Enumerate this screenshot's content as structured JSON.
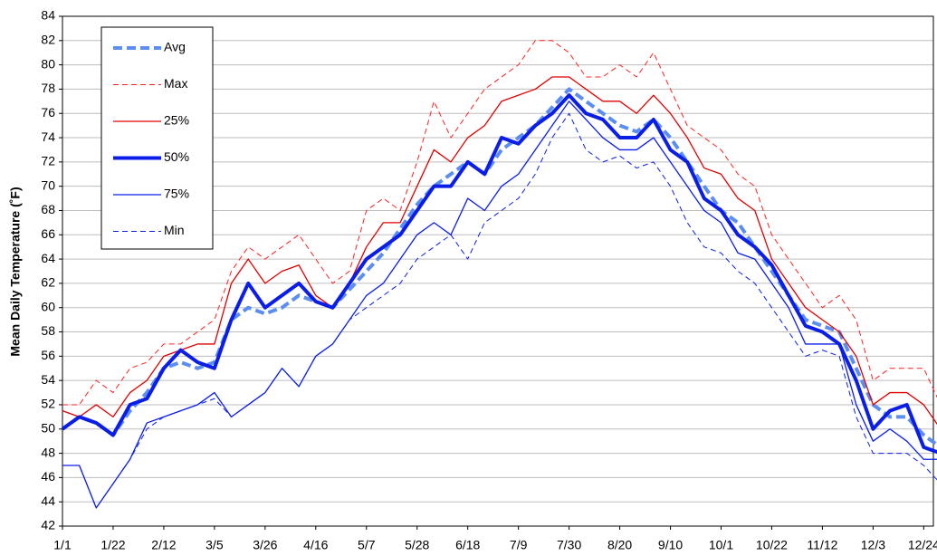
{
  "chart_data": {
    "type": "line",
    "y_label": "Mean Daily Temperature (˚F)",
    "x": [
      0,
      7,
      14,
      21,
      28,
      35,
      42,
      49,
      56,
      63,
      70,
      77,
      84,
      91,
      98,
      105,
      112,
      119,
      126,
      133,
      140,
      147,
      154,
      161,
      168,
      175,
      182,
      189,
      196,
      203,
      210,
      217,
      224,
      231,
      238,
      245,
      252,
      259,
      266,
      273,
      280,
      287,
      294,
      301,
      308,
      315,
      322,
      329,
      336,
      343,
      350,
      357,
      364
    ],
    "xlim": [
      0,
      361
    ],
    "xticks": [
      {
        "value": 0,
        "label": "1/1"
      },
      {
        "value": 21,
        "label": "1/22"
      },
      {
        "value": 42,
        "label": "2/12"
      },
      {
        "value": 63,
        "label": "3/5"
      },
      {
        "value": 84,
        "label": "3/26"
      },
      {
        "value": 105,
        "label": "4/16"
      },
      {
        "value": 126,
        "label": "5/7"
      },
      {
        "value": 147,
        "label": "5/28"
      },
      {
        "value": 168,
        "label": "6/18"
      },
      {
        "value": 189,
        "label": "7/9"
      },
      {
        "value": 210,
        "label": "7/30"
      },
      {
        "value": 231,
        "label": "8/20"
      },
      {
        "value": 252,
        "label": "9/10"
      },
      {
        "value": 273,
        "label": "10/1"
      },
      {
        "value": 294,
        "label": "10/22"
      },
      {
        "value": 315,
        "label": "11/12"
      },
      {
        "value": 336,
        "label": "12/3"
      },
      {
        "value": 357,
        "label": "12/24"
      }
    ],
    "ylim": [
      42,
      84
    ],
    "yticks": [
      42,
      44,
      46,
      48,
      50,
      52,
      54,
      56,
      58,
      60,
      62,
      64,
      66,
      68,
      70,
      72,
      74,
      76,
      78,
      80,
      82,
      84
    ],
    "grid": true,
    "legend": "top-left",
    "series": [
      {
        "name": "Avg",
        "color": "#5b8ef0",
        "style": "dashed",
        "line_width": 4,
        "values": [
          50,
          51,
          50.5,
          49.5,
          51.5,
          53,
          55,
          55.5,
          55,
          55.5,
          59,
          60,
          59.5,
          60,
          61,
          60.5,
          60,
          61.5,
          63,
          64.5,
          66.5,
          68.5,
          70,
          71,
          72,
          71,
          73,
          74,
          75,
          76.5,
          78,
          77,
          76,
          75,
          74.5,
          75.5,
          74,
          72,
          70,
          68,
          67,
          65,
          63,
          61,
          59,
          58.5,
          58,
          55,
          52,
          51,
          51,
          49.5,
          48.5
        ]
      },
      {
        "name": "Max",
        "color": "#ff2020",
        "style": "dashed",
        "line_width": 1,
        "values": [
          52,
          52,
          54,
          53,
          55,
          55.5,
          57,
          57,
          58,
          59,
          63,
          65,
          64,
          65,
          66,
          64,
          62,
          63,
          68,
          69,
          68,
          72,
          77,
          74,
          76,
          78,
          79,
          80,
          82,
          82,
          81,
          79,
          79,
          80,
          79,
          81,
          78,
          75,
          74,
          73,
          71,
          70,
          66,
          64,
          62,
          60,
          61,
          59,
          54,
          55,
          55,
          55,
          52
        ]
      },
      {
        "name": "25%",
        "color": "#e00000",
        "style": "solid",
        "line_width": 1.3,
        "values": [
          51.5,
          51,
          52,
          51,
          53,
          54,
          56,
          56.5,
          57,
          57,
          62,
          64,
          62,
          63,
          63.5,
          61,
          60,
          62,
          65,
          67,
          67,
          70,
          73,
          72,
          74,
          75,
          77,
          77.5,
          78,
          79,
          79,
          78,
          77,
          77,
          76,
          77.5,
          76,
          74,
          71.5,
          71,
          69,
          68,
          64,
          62,
          60,
          59,
          58,
          56,
          52,
          53,
          53,
          52,
          50
        ]
      },
      {
        "name": "50%",
        "color": "#0a1ee8",
        "style": "solid",
        "line_width": 4,
        "values": [
          50,
          51,
          50.5,
          49.5,
          52,
          52.5,
          55,
          56.5,
          55.5,
          55,
          59,
          62,
          60,
          61,
          62,
          60.5,
          60,
          62,
          64,
          65,
          66,
          68,
          70,
          70,
          72,
          71,
          74,
          73.5,
          75,
          76,
          77.5,
          76,
          75.5,
          74,
          74,
          75.5,
          73,
          72,
          69,
          68,
          66,
          65,
          63.5,
          61,
          58.5,
          58,
          57,
          54,
          50,
          51.5,
          52,
          48.5,
          48
        ]
      },
      {
        "name": "75%",
        "color": "#0a1ee8",
        "style": "solid",
        "line_width": 1.3,
        "values": [
          47,
          47,
          43.5,
          45.5,
          47.5,
          50.5,
          51,
          51.5,
          52,
          53,
          51,
          52,
          53,
          55,
          53.5,
          56,
          57,
          59,
          61,
          62,
          64,
          66,
          67,
          66,
          69,
          68,
          70,
          71,
          73,
          75,
          77,
          75.5,
          74,
          73,
          73,
          74,
          72,
          70,
          68,
          67,
          64.5,
          64,
          62,
          60,
          57,
          57,
          57,
          52,
          49,
          50,
          49,
          47.5,
          47.5
        ]
      },
      {
        "name": "Min",
        "color": "#0a1ee8",
        "style": "dashed",
        "line_width": 1,
        "values": [
          47,
          47,
          43.5,
          45.5,
          47.5,
          50,
          51,
          51.5,
          52,
          52.5,
          51,
          52,
          53,
          55,
          53.5,
          56,
          57,
          59,
          60,
          61,
          62,
          64,
          65,
          66,
          64,
          67,
          68,
          69,
          71,
          74,
          76,
          73,
          72,
          72.5,
          71.5,
          72,
          70,
          67,
          65,
          64.5,
          63,
          62,
          60,
          58,
          56,
          56.5,
          56,
          51,
          48,
          48,
          48,
          47,
          45.5
        ]
      }
    ]
  }
}
